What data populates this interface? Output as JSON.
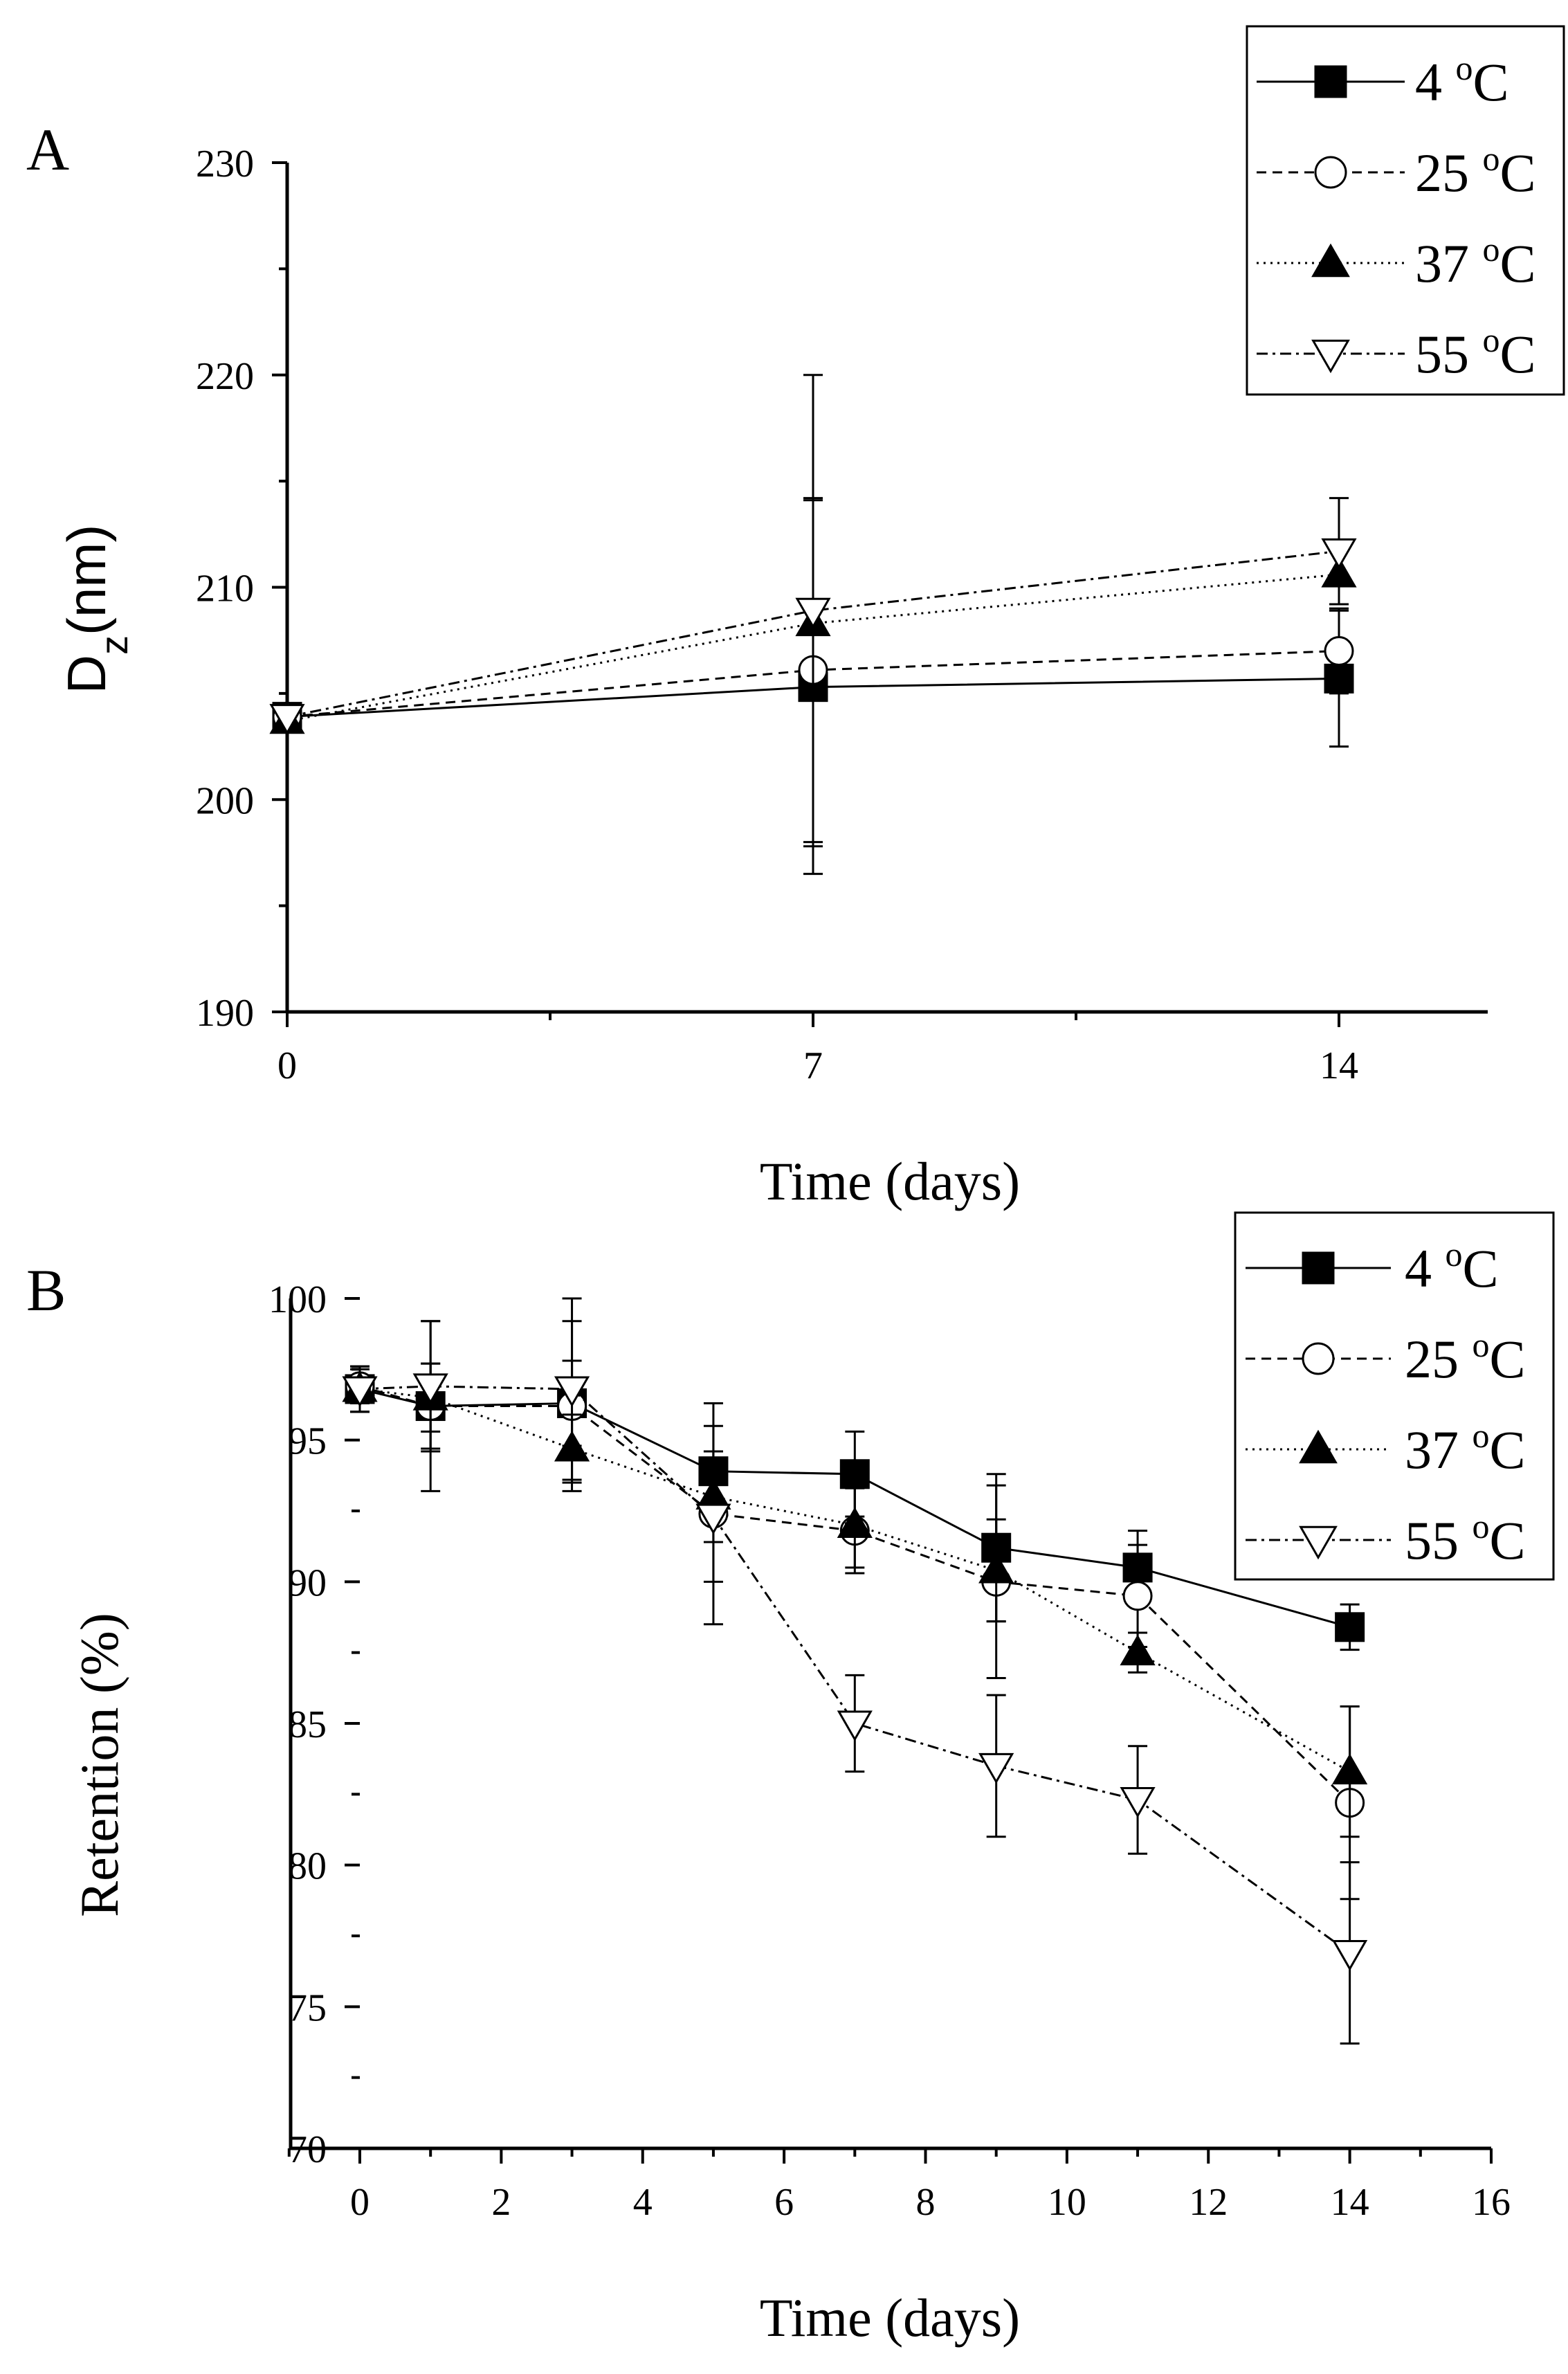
{
  "colors": {
    "ink": "#000000",
    "background": "#ffffff"
  },
  "chart_data": [
    {
      "type": "line",
      "panel_label": "A",
      "title": "",
      "xlabel": "Time (days)",
      "ylabel_main": "D",
      "ylabel_sub": "z",
      "ylabel_rest": "(nm)",
      "xlim": [
        0,
        16
      ],
      "ylim": [
        190,
        230
      ],
      "x_ticks": [
        0,
        7,
        14
      ],
      "x_tick_labels": [
        "0",
        "7",
        "14"
      ],
      "x_minor_ticks": [
        3.5,
        10.5
      ],
      "y_ticks": [
        190,
        200,
        210,
        220,
        230
      ],
      "y_tick_labels": [
        "190",
        "200",
        "210",
        "220",
        "230"
      ],
      "y_minor_ticks": [
        195,
        205,
        215,
        225
      ],
      "grid": false,
      "legend_position": "top-right",
      "series": [
        {
          "name": "4 ºC",
          "label_value": "4",
          "marker": "square-filled",
          "dash": "solid",
          "x": [
            0,
            7,
            14
          ],
          "y": [
            203.9,
            205.3,
            205.7
          ],
          "err": [
            0,
            8.8,
            3.2
          ]
        },
        {
          "name": "25 ºC",
          "label_value": "25",
          "marker": "circle-open",
          "dash": "dashed",
          "x": [
            0,
            7,
            14
          ],
          "y": [
            203.9,
            206.1,
            207.0
          ],
          "err": [
            0,
            8.1,
            2.0
          ]
        },
        {
          "name": "37 ºC",
          "label_value": "37",
          "marker": "triangle-up-filled",
          "dash": "dotted",
          "x": [
            0,
            7,
            14
          ],
          "y": [
            203.7,
            208.3,
            210.6
          ],
          "err": [
            0,
            0,
            0
          ]
        },
        {
          "name": "55 ºC",
          "label_value": "55",
          "marker": "triangle-down-open",
          "dash": "dashdot",
          "x": [
            0,
            7,
            14
          ],
          "y": [
            203.9,
            208.9,
            211.7
          ],
          "err": [
            0,
            11.1,
            2.5
          ]
        }
      ]
    },
    {
      "type": "line",
      "panel_label": "B",
      "title": "",
      "xlabel": "Time (days)",
      "ylabel": "Retention (%)",
      "xlim": [
        -1,
        16
      ],
      "ylim": [
        70,
        100
      ],
      "x_ticks": [
        0,
        2,
        4,
        6,
        8,
        10,
        12,
        14,
        16
      ],
      "x_tick_labels": [
        "0",
        "2",
        "4",
        "6",
        "8",
        "10",
        "12",
        "14",
        "16"
      ],
      "x_minor_ticks": [
        -1,
        1,
        3,
        5,
        7,
        9,
        11,
        13,
        15
      ],
      "y_ticks": [
        70,
        75,
        80,
        85,
        90,
        95,
        100
      ],
      "y_tick_labels": [
        "70",
        "75",
        "80",
        "85",
        "90",
        "95",
        "100"
      ],
      "y_minor_ticks": [
        72.5,
        77.5,
        82.5,
        87.5,
        92.5,
        97.5
      ],
      "grid": false,
      "legend_position": "top-right",
      "series": [
        {
          "name": "4 ºC",
          "label_value": "4",
          "marker": "square-filled",
          "dash": "solid",
          "x": [
            0,
            1,
            3,
            5,
            7,
            9,
            11,
            14
          ],
          "y": [
            96.8,
            96.2,
            96.3,
            93.9,
            93.8,
            91.2,
            90.5,
            88.4
          ],
          "err": [
            0.8,
            1.5,
            1.5,
            1.6,
            1.5,
            2.6,
            1.3,
            0.8
          ]
        },
        {
          "name": "25 ºC",
          "label_value": "25",
          "marker": "circle-open",
          "dash": "dashed",
          "x": [
            0,
            1,
            3,
            5,
            7,
            9,
            11,
            14
          ],
          "y": [
            96.9,
            96.2,
            96.2,
            92.4,
            91.8,
            90.0,
            89.5,
            82.2
          ],
          "err": [
            0.6,
            3.0,
            3.0,
            3.9,
            1.5,
            3.4,
            1.8,
            3.4
          ]
        },
        {
          "name": "37 ºC",
          "label_value": "37",
          "marker": "triangle-up-filled",
          "dash": "dotted",
          "x": [
            0,
            1,
            3,
            5,
            7,
            9,
            11,
            14
          ],
          "y": [
            96.8,
            96.5,
            94.7,
            93.0,
            92.0,
            90.4,
            87.5,
            83.3
          ],
          "err": [
            0.8,
            1.2,
            1.2,
            1.6,
            1.5,
            1.8,
            0.7,
            2.3
          ]
        },
        {
          "name": "55 ºC",
          "label_value": "55",
          "marker": "triangle-down-open",
          "dash": "dashdot",
          "x": [
            0,
            1,
            3,
            5,
            7,
            9,
            11,
            14
          ],
          "y": [
            96.8,
            96.9,
            96.8,
            92.3,
            85.0,
            83.5,
            82.3,
            76.9
          ],
          "err": [
            0.8,
            2.3,
            3.2,
            2.3,
            1.7,
            2.5,
            1.9,
            3.2
          ]
        }
      ]
    }
  ]
}
